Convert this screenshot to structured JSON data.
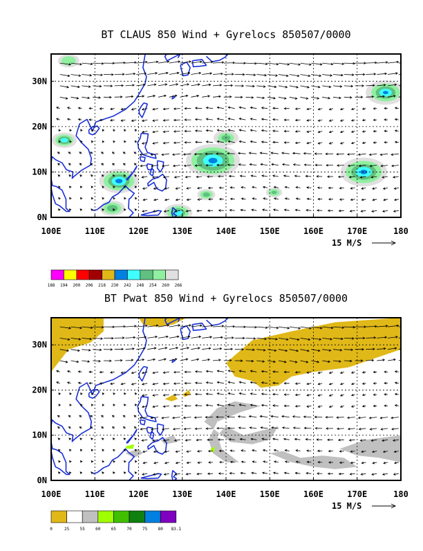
{
  "colors": {
    "coast": "#1a2fd6",
    "pwat_low": "#e0b818",
    "pwat_mid": "#c0c0c0"
  },
  "chart_data": [
    {
      "type": "map",
      "title": "BT CLAUS 850 Wind + Gyrelocs 850507/0000",
      "x_ticks": [
        "100E",
        "110E",
        "120E",
        "130E",
        "140E",
        "150E",
        "160E",
        "170E",
        "180"
      ],
      "y_ticks": [
        "0N",
        "10N",
        "20N",
        "30N"
      ],
      "lon_range": [
        100,
        180
      ],
      "lat_range": [
        0,
        36
      ],
      "grid": true,
      "vector_ref": {
        "label": "15 M/S"
      },
      "legend": {
        "labels": [
          "188",
          "194",
          "200",
          "206",
          "218",
          "230",
          "242",
          "248",
          "254",
          "260",
          "266"
        ],
        "colors": [
          "#ff00ff",
          "#ffff00",
          "#ff0000",
          "#a00000",
          "#e0b818",
          "#0080e0",
          "#40ffff",
          "#60c080",
          "#90f0a0",
          "#e0e0e0"
        ]
      },
      "cloud_regions": [
        {
          "name": "south-china-sea-cluster",
          "lon": 115,
          "lat": 8
        },
        {
          "name": "philippine-sea-cluster",
          "lon": 136,
          "lat": 13
        },
        {
          "name": "central-pacific-cluster",
          "lon": 171,
          "lat": 10
        },
        {
          "name": "subtropical-cluster",
          "lon": 176,
          "lat": 27
        }
      ]
    },
    {
      "type": "map",
      "title": "BT Pwat 850 Wind + Gyrelocs 850507/0000",
      "x_ticks": [
        "100E",
        "110E",
        "120E",
        "130E",
        "140E",
        "150E",
        "160E",
        "170E",
        "180"
      ],
      "y_ticks": [
        "0N",
        "10N",
        "20N",
        "30N"
      ],
      "lon_range": [
        100,
        180
      ],
      "lat_range": [
        0,
        36
      ],
      "grid": true,
      "vector_ref": {
        "label": "15 M/S"
      },
      "legend": {
        "labels": [
          "0",
          "25",
          "55",
          "60",
          "65",
          "70",
          "75",
          "80",
          "83.1"
        ],
        "colors": [
          "#e0b818",
          "#ffffff",
          "#c0c0c0",
          "#a0ff00",
          "#40c000",
          "#108010",
          "#0080e0",
          "#8000c0"
        ]
      }
    }
  ]
}
